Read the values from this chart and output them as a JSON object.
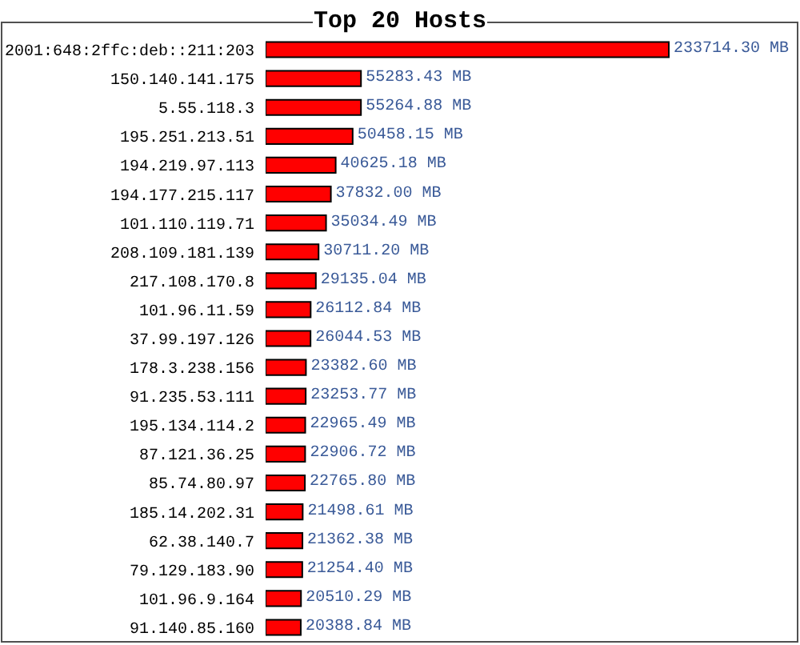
{
  "chart_data": {
    "type": "bar",
    "orientation": "horizontal",
    "title": "Top 20 Hosts",
    "color": "#ff0000",
    "categories": [
      "2001:648:2ffc:deb::211:203",
      "150.140.141.175",
      "5.55.118.3",
      "195.251.213.51",
      "194.219.97.113",
      "194.177.215.117",
      "101.110.119.71",
      "208.109.181.139",
      "217.108.170.8",
      "101.96.11.59",
      "37.99.197.126",
      "178.3.238.156",
      "91.235.53.111",
      "195.134.114.2",
      "87.121.36.25",
      "85.74.80.97",
      "185.14.202.31",
      "62.38.140.7",
      "79.129.183.90",
      "101.96.9.164",
      "91.140.85.160"
    ],
    "values": [
      233714.3,
      55283.43,
      55264.88,
      50458.15,
      40625.18,
      37832.0,
      35034.49,
      30711.2,
      29135.04,
      26112.84,
      26044.53,
      23382.6,
      23253.77,
      22965.49,
      22906.72,
      22765.8,
      21498.61,
      21362.38,
      21254.4,
      20510.29,
      20388.84
    ],
    "value_labels": [
      "233714.30 MB",
      "55283.43 MB",
      "55264.88 MB",
      "50458.15 MB",
      "40625.18 MB",
      "37832.00 MB",
      "35034.49 MB",
      "30711.20 MB",
      "29135.04 MB",
      "26112.84 MB",
      "26044.53 MB",
      "23382.60 MB",
      "23253.77 MB",
      "22965.49 MB",
      "22906.72 MB",
      "22765.80 MB",
      "21498.61 MB",
      "21362.38 MB",
      "21254.40 MB",
      "20510.29 MB",
      "20388.84 MB"
    ]
  }
}
